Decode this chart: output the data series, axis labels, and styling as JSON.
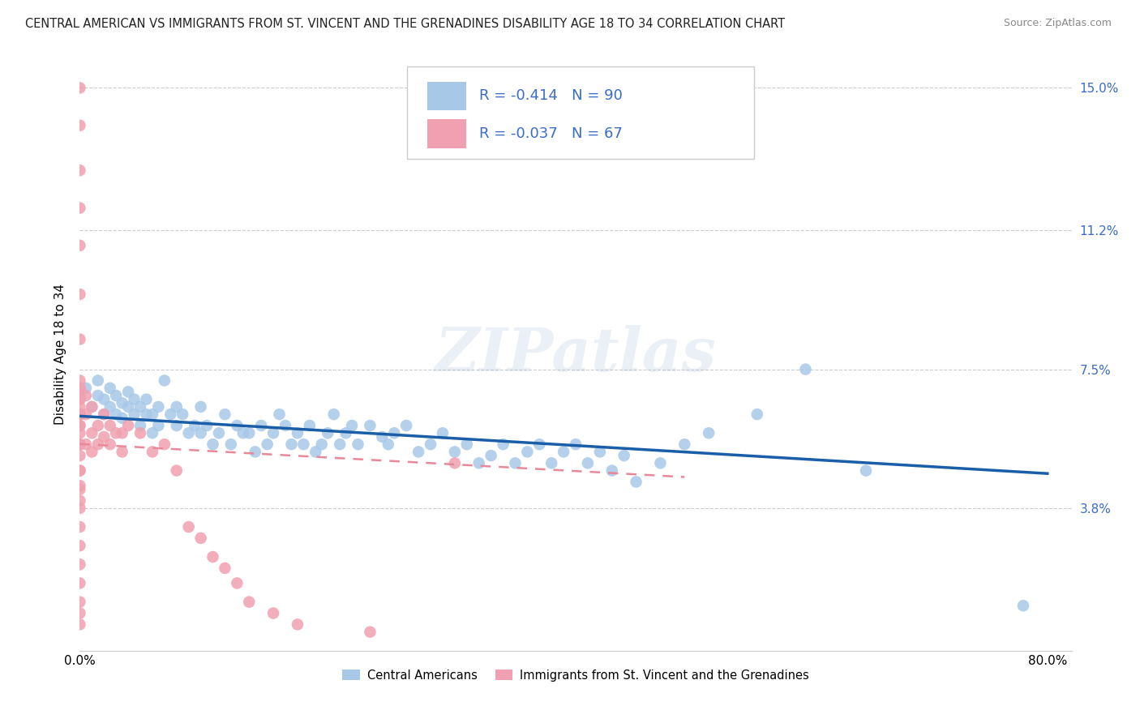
{
  "title": "CENTRAL AMERICAN VS IMMIGRANTS FROM ST. VINCENT AND THE GRENADINES DISABILITY AGE 18 TO 34 CORRELATION CHART",
  "source": "Source: ZipAtlas.com",
  "ylabel": "Disability Age 18 to 34",
  "xlim": [
    0.0,
    0.82
  ],
  "ylim": [
    0.0,
    0.158
  ],
  "x_ticks": [
    0.0,
    0.1,
    0.2,
    0.3,
    0.4,
    0.5,
    0.6,
    0.7,
    0.8
  ],
  "y_ticks": [
    0.038,
    0.075,
    0.112,
    0.15
  ],
  "y_tick_labels": [
    "3.8%",
    "7.5%",
    "11.2%",
    "15.0%"
  ],
  "r_blue": -0.414,
  "n_blue": 90,
  "r_pink": -0.037,
  "n_pink": 67,
  "blue_color": "#A8C8E8",
  "pink_color": "#F0A0B0",
  "blue_line_color": "#1A5EA8",
  "pink_line_color": "#E88898",
  "watermark": "ZIPatlas",
  "legend_label_blue": "Central Americans",
  "legend_label_pink": "Immigrants from St. Vincent and the Grenadines",
  "blue_x": [
    0.005,
    0.01,
    0.015,
    0.015,
    0.02,
    0.02,
    0.025,
    0.025,
    0.03,
    0.03,
    0.035,
    0.035,
    0.04,
    0.04,
    0.045,
    0.045,
    0.05,
    0.05,
    0.055,
    0.055,
    0.06,
    0.06,
    0.065,
    0.065,
    0.07,
    0.075,
    0.08,
    0.08,
    0.085,
    0.09,
    0.095,
    0.1,
    0.1,
    0.105,
    0.11,
    0.115,
    0.12,
    0.125,
    0.13,
    0.135,
    0.14,
    0.145,
    0.15,
    0.155,
    0.16,
    0.165,
    0.17,
    0.175,
    0.18,
    0.185,
    0.19,
    0.195,
    0.2,
    0.205,
    0.21,
    0.215,
    0.22,
    0.225,
    0.23,
    0.24,
    0.25,
    0.255,
    0.26,
    0.27,
    0.28,
    0.29,
    0.3,
    0.31,
    0.32,
    0.33,
    0.34,
    0.35,
    0.36,
    0.37,
    0.38,
    0.39,
    0.4,
    0.41,
    0.42,
    0.43,
    0.44,
    0.45,
    0.46,
    0.48,
    0.5,
    0.52,
    0.56,
    0.6,
    0.65,
    0.78
  ],
  "blue_y": [
    0.07,
    0.065,
    0.068,
    0.072,
    0.067,
    0.063,
    0.065,
    0.07,
    0.063,
    0.068,
    0.066,
    0.062,
    0.065,
    0.069,
    0.063,
    0.067,
    0.06,
    0.065,
    0.063,
    0.067,
    0.058,
    0.063,
    0.06,
    0.065,
    0.072,
    0.063,
    0.06,
    0.065,
    0.063,
    0.058,
    0.06,
    0.065,
    0.058,
    0.06,
    0.055,
    0.058,
    0.063,
    0.055,
    0.06,
    0.058,
    0.058,
    0.053,
    0.06,
    0.055,
    0.058,
    0.063,
    0.06,
    0.055,
    0.058,
    0.055,
    0.06,
    0.053,
    0.055,
    0.058,
    0.063,
    0.055,
    0.058,
    0.06,
    0.055,
    0.06,
    0.057,
    0.055,
    0.058,
    0.06,
    0.053,
    0.055,
    0.058,
    0.053,
    0.055,
    0.05,
    0.052,
    0.055,
    0.05,
    0.053,
    0.055,
    0.05,
    0.053,
    0.055,
    0.05,
    0.053,
    0.048,
    0.052,
    0.045,
    0.05,
    0.055,
    0.058,
    0.063,
    0.075,
    0.048,
    0.012
  ],
  "pink_x": [
    0.0,
    0.0,
    0.0,
    0.0,
    0.0,
    0.0,
    0.0,
    0.0,
    0.0,
    0.0,
    0.0,
    0.0,
    0.0,
    0.0,
    0.0,
    0.0,
    0.0,
    0.0,
    0.0,
    0.0,
    0.0,
    0.0,
    0.0,
    0.0,
    0.0,
    0.0,
    0.0,
    0.0,
    0.0,
    0.0,
    0.0,
    0.0,
    0.0,
    0.0,
    0.0,
    0.0,
    0.0,
    0.005,
    0.005,
    0.005,
    0.01,
    0.01,
    0.01,
    0.015,
    0.015,
    0.02,
    0.02,
    0.025,
    0.025,
    0.03,
    0.035,
    0.035,
    0.04,
    0.05,
    0.06,
    0.07,
    0.08,
    0.09,
    0.1,
    0.11,
    0.12,
    0.13,
    0.14,
    0.16,
    0.18,
    0.24,
    0.31
  ],
  "pink_y": [
    0.15,
    0.14,
    0.128,
    0.118,
    0.108,
    0.095,
    0.083,
    0.072,
    0.063,
    0.055,
    0.048,
    0.043,
    0.038,
    0.033,
    0.028,
    0.023,
    0.018,
    0.013,
    0.01,
    0.007,
    0.063,
    0.06,
    0.065,
    0.068,
    0.07,
    0.067,
    0.063,
    0.06,
    0.055,
    0.052,
    0.048,
    0.044,
    0.04,
    0.07,
    0.067,
    0.063,
    0.058,
    0.068,
    0.063,
    0.055,
    0.065,
    0.058,
    0.053,
    0.06,
    0.055,
    0.063,
    0.057,
    0.06,
    0.055,
    0.058,
    0.058,
    0.053,
    0.06,
    0.058,
    0.053,
    0.055,
    0.048,
    0.033,
    0.03,
    0.025,
    0.022,
    0.018,
    0.013,
    0.01,
    0.007,
    0.005,
    0.05
  ]
}
